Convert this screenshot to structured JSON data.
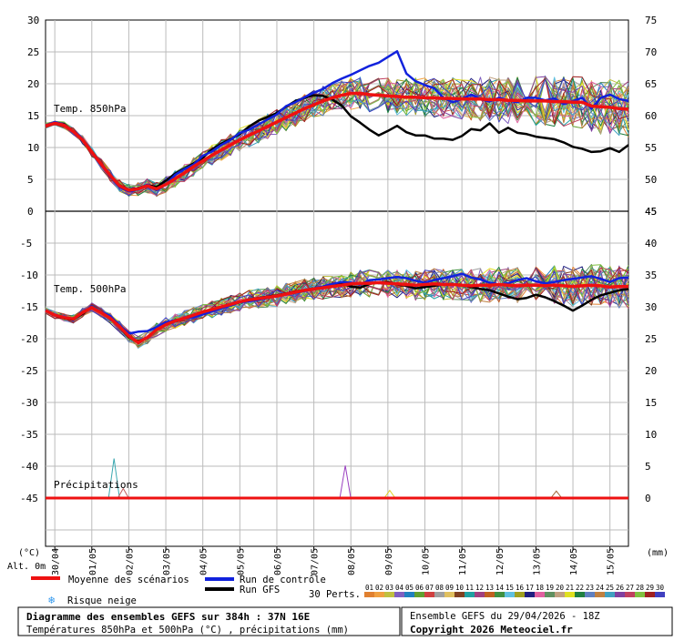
{
  "chart_data": {
    "type": "line",
    "dates": [
      "30/04",
      "01/05",
      "02/05",
      "03/05",
      "04/05",
      "05/05",
      "06/05",
      "07/05",
      "08/05",
      "09/05",
      "10/05",
      "11/05",
      "12/05",
      "13/05",
      "14/05",
      "15/05"
    ],
    "unit_left": "(°C)",
    "unit_right": "(mm)",
    "altitude_label": "Alt. 0m",
    "panels": [
      {
        "name": "t850",
        "label": "Temp. 850hPa",
        "left_ticks": [
          30,
          25,
          20,
          15,
          10,
          5,
          0
        ],
        "right_ticks": [
          75,
          70,
          65,
          60,
          55,
          50,
          45
        ],
        "ylim": [
          0,
          30
        ],
        "control": [
          13.5,
          14,
          13.6,
          12.6,
          11.4,
          9.3,
          7.3,
          5.4,
          3.8,
          3.1,
          3.4,
          4.2,
          3.3,
          4.2,
          5.7,
          6.6,
          7.3,
          8.7,
          9.4,
          10.4,
          11.2,
          12.3,
          12.8,
          13.6,
          14.4,
          15.2,
          16.5,
          17.1,
          17.9,
          18.6,
          19.2,
          20.1,
          20.8,
          21.4,
          22.1,
          22.8,
          23.3,
          24.2,
          25.1,
          21.6,
          20.4,
          19.8,
          19.3,
          17.8,
          17.1,
          17.6,
          18.3,
          17.6,
          17.2,
          17.8,
          17.4,
          17.1,
          17.8,
          17.8,
          17.4,
          17.7,
          16.8,
          17.3,
          17.8,
          16.1,
          17.8,
          18.3,
          17.6,
          17.3
        ],
        "gfs": [
          13.4,
          13.9,
          13.7,
          12.5,
          11.3,
          9.4,
          7.5,
          5.6,
          4.1,
          3.4,
          3.6,
          4.1,
          3.8,
          4.8,
          5.9,
          6.7,
          7.5,
          8.4,
          9.7,
          10.6,
          11.3,
          12.1,
          13.3,
          14.2,
          14.8,
          15.4,
          16.4,
          17.3,
          17.8,
          18.2,
          18.1,
          17.5,
          16.6,
          14.9,
          13.9,
          12.8,
          11.9,
          12.6,
          13.4,
          12.4,
          11.9,
          11.9,
          11.4,
          11.4,
          11.2,
          11.8,
          12.9,
          12.7,
          13.8,
          12.3,
          13.1,
          12.3,
          12.1,
          11.7,
          11.5,
          11.3,
          10.8,
          10.1,
          9.8,
          9.3,
          9.4,
          9.9,
          9.3,
          10.4
        ],
        "mean": [
          13.4,
          13.8,
          13.5,
          12.5,
          11.2,
          9.3,
          7.4,
          5.6,
          4,
          3.3,
          3.5,
          4,
          3.5,
          4.2,
          5.1,
          6,
          7,
          7.9,
          8.8,
          9.6,
          10.4,
          11.2,
          11.9,
          12.6,
          13.3,
          14,
          14.7,
          15.4,
          16.1,
          16.7,
          17.3,
          17.8,
          18.2,
          18.5,
          18.5,
          18.3,
          18.2,
          18.1,
          18,
          17.9,
          17.9,
          17.8,
          17.8,
          17.7,
          17.7,
          17.6,
          17.6,
          17.6,
          17.5,
          17.5,
          17.4,
          17.4,
          17.3,
          17.3,
          17.3,
          17.2,
          17.2,
          17.1,
          17.1,
          16.5,
          16.4,
          16.3,
          16.1,
          16
        ]
      },
      {
        "name": "t500",
        "label": "Temp. 500hPa",
        "left_ticks": [
          -5,
          -10,
          -15,
          -20,
          -25,
          -30,
          -35,
          -40,
          -45
        ],
        "right_ticks": [
          45,
          40,
          35,
          30,
          25,
          20,
          15,
          10,
          5,
          0
        ],
        "ylim": [
          -50,
          0
        ],
        "control": [
          -15.5,
          -16.2,
          -16.7,
          -16.9,
          -15.9,
          -14.9,
          -15.8,
          -16.4,
          -17.9,
          -19.2,
          -18.9,
          -18.8,
          -18.2,
          -17.4,
          -17.1,
          -16.9,
          -16.6,
          -16.2,
          -15.7,
          -15.2,
          -14.8,
          -14.3,
          -14.1,
          -13.9,
          -13.6,
          -13.3,
          -13,
          -12.8,
          -12.5,
          -12.1,
          -11.8,
          -11.4,
          -11.1,
          -11.2,
          -11.5,
          -10.8,
          -10.7,
          -10.5,
          -10.3,
          -10.5,
          -10.9,
          -11.2,
          -10.8,
          -10.5,
          -10.2,
          -9.8,
          -10.4,
          -10.7,
          -11.2,
          -11.5,
          -11.3,
          -10.8,
          -10.5,
          -11,
          -11.3,
          -11.1,
          -10.8,
          -10.6,
          -10.4,
          -10.2,
          -10.6,
          -11.1,
          -10.5,
          -10.4
        ],
        "gfs": [
          -15.6,
          -16.4,
          -16.8,
          -17,
          -16.1,
          -15,
          -15.8,
          -16.6,
          -18.2,
          -19.8,
          -20.4,
          -19.9,
          -18.5,
          -17.6,
          -17.2,
          -16.8,
          -16.4,
          -15.9,
          -15.4,
          -15,
          -14.6,
          -14.2,
          -13.9,
          -13.6,
          -13.4,
          -13.2,
          -12.9,
          -12.6,
          -12.4,
          -12.1,
          -11.9,
          -11.6,
          -11.3,
          -11.8,
          -12,
          -11.4,
          -11.2,
          -11.1,
          -11.5,
          -11.7,
          -12.1,
          -11.9,
          -11.7,
          -11.5,
          -11.4,
          -11.6,
          -11.9,
          -12.2,
          -12.4,
          -12.9,
          -13.4,
          -13.8,
          -13.6,
          -13.1,
          -13.5,
          -14.1,
          -14.8,
          -15.6,
          -14.8,
          -13.9,
          -13.2,
          -12.8,
          -12.4,
          -12.2
        ],
        "mean": [
          -15.6,
          -16.3,
          -16.7,
          -16.9,
          -15.9,
          -15.1,
          -15.9,
          -16.8,
          -18.1,
          -19.6,
          -20.6,
          -19.8,
          -18.6,
          -17.8,
          -17.2,
          -16.8,
          -16.3,
          -15.8,
          -15.4,
          -15,
          -14.6,
          -14.2,
          -13.9,
          -13.7,
          -13.5,
          -13.3,
          -13,
          -12.7,
          -12.4,
          -12.2,
          -12,
          -11.8,
          -11.6,
          -11.4,
          -11.3,
          -11.3,
          -11.2,
          -11.3,
          -11.4,
          -11.5,
          -11.6,
          -11.5,
          -11.4,
          -11.5,
          -11.5,
          -11.6,
          -11.7,
          -11.6,
          -11.6,
          -11.5,
          -11.6,
          -11.7,
          -11.6,
          -11.6,
          -11.7,
          -11.6,
          -11.7,
          -11.8,
          -11.7,
          -11.6,
          -11.7,
          -11.9,
          -11.8,
          -11.8
        ]
      }
    ],
    "precip": {
      "label": "Précipitations",
      "spikes": [
        {
          "day": 1.85,
          "value": 6.2,
          "color": "#3aa8b0"
        },
        {
          "day": 2.1,
          "value": 1.5,
          "color": "#c06060"
        },
        {
          "day": 8.1,
          "value": 5.1,
          "color": "#9a40c0"
        },
        {
          "day": 9.3,
          "value": 1.2,
          "color": "#e0d020"
        },
        {
          "day": 13.8,
          "value": 1.1,
          "color": "#a06030"
        }
      ]
    },
    "legend": {
      "mean": "Moyenne des scénarios",
      "control": "Run de contrôle",
      "gfs": "Run GFS",
      "snow": "Risque neige",
      "perts": "30 Perts.",
      "pert_numbers": [
        "01",
        "02",
        "03",
        "04",
        "05",
        "06",
        "07",
        "08",
        "09",
        "10",
        "11",
        "12",
        "13",
        "14",
        "15",
        "16",
        "17",
        "18",
        "19",
        "20",
        "21",
        "22",
        "23",
        "24",
        "25",
        "26",
        "27",
        "28",
        "29",
        "30"
      ],
      "pert_colors": [
        "#e08030",
        "#f0a040",
        "#c0c040",
        "#8060c0",
        "#2080c0",
        "#60a030",
        "#d04040",
        "#a0a0a0",
        "#e0c060",
        "#804020",
        "#20a0a0",
        "#a04080",
        "#c06020",
        "#409040",
        "#60c0e0",
        "#a0a020",
        "#202080",
        "#e060a0",
        "#609060",
        "#c0a080",
        "#e0e020",
        "#208040",
        "#6080c0",
        "#c08040",
        "#40a0c0",
        "#8040a0",
        "#c04060",
        "#80c040",
        "#a02020",
        "#4040c0"
      ],
      "colors": {
        "mean": "#ee1111",
        "control": "#1122dd",
        "gfs": "#000000",
        "snow": "#3399ee"
      }
    },
    "footer": {
      "title": "Diagramme des ensembles GEFS sur 384h : 37N 16E",
      "subtitle": "Températures 850hPa et 500hPa (°C) , précipitations (mm)",
      "run": "Ensemble GEFS du 29/04/2026 - 18Z",
      "copyright": "Copyright 2026 Meteociel.fr"
    }
  }
}
